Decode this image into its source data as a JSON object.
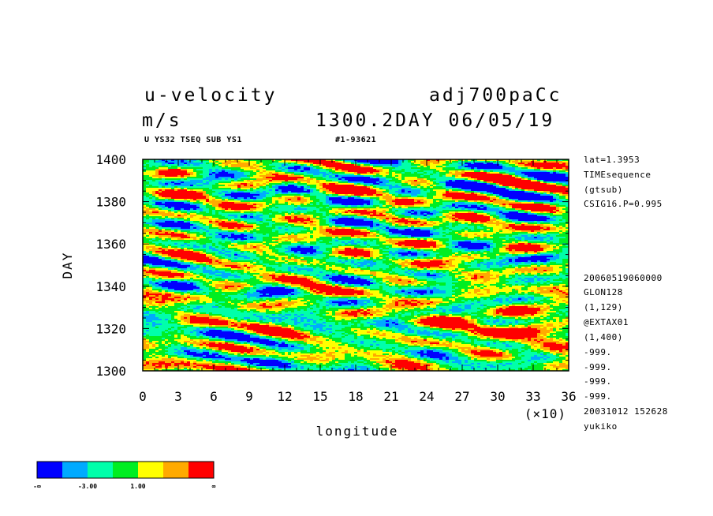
{
  "header": {
    "variable": "u-velocity",
    "units": "m/s",
    "experiment": "adj700paCc",
    "time_label": "1300.2DAY 06/05/19",
    "subtitle_left": "U YS32 TSEQ SUB YS1",
    "subtitle_right": "#1-93621"
  },
  "side_info": [
    "lat=1.3953",
    "TIMEsequence",
    "(gtsub)",
    "CSIG16.P=0.995",
    "20060519060000",
    "GLON128",
    "(1,129)",
    "@EXTAX01",
    "(1,400)",
    "-999.",
    "-999.",
    "-999.",
    "-999.",
    "20031012 152628",
    "yukiko"
  ],
  "colors": {
    "levels": [
      "#0000ff",
      "#00aaff",
      "#00ffaa",
      "#00ee22",
      "#ffff00",
      "#ffaa00",
      "#ff0000"
    ]
  },
  "colorbar": {
    "labels": [
      "-∞",
      "-3.00",
      "1.00",
      "∞"
    ]
  },
  "chart_data": {
    "type": "heatmap",
    "xlabel": "longitude",
    "ylabel": "DAY",
    "x_multiplier": "(×10)",
    "xlim": [
      0,
      36
    ],
    "ylim": [
      1300,
      1400
    ],
    "x_ticks": [
      "0",
      "3",
      "6",
      "9",
      "12",
      "15",
      "18",
      "21",
      "24",
      "27",
      "30",
      "33",
      "36"
    ],
    "y_ticks": [
      "1300",
      "1320",
      "1340",
      "1360",
      "1380",
      "1400"
    ]
  }
}
